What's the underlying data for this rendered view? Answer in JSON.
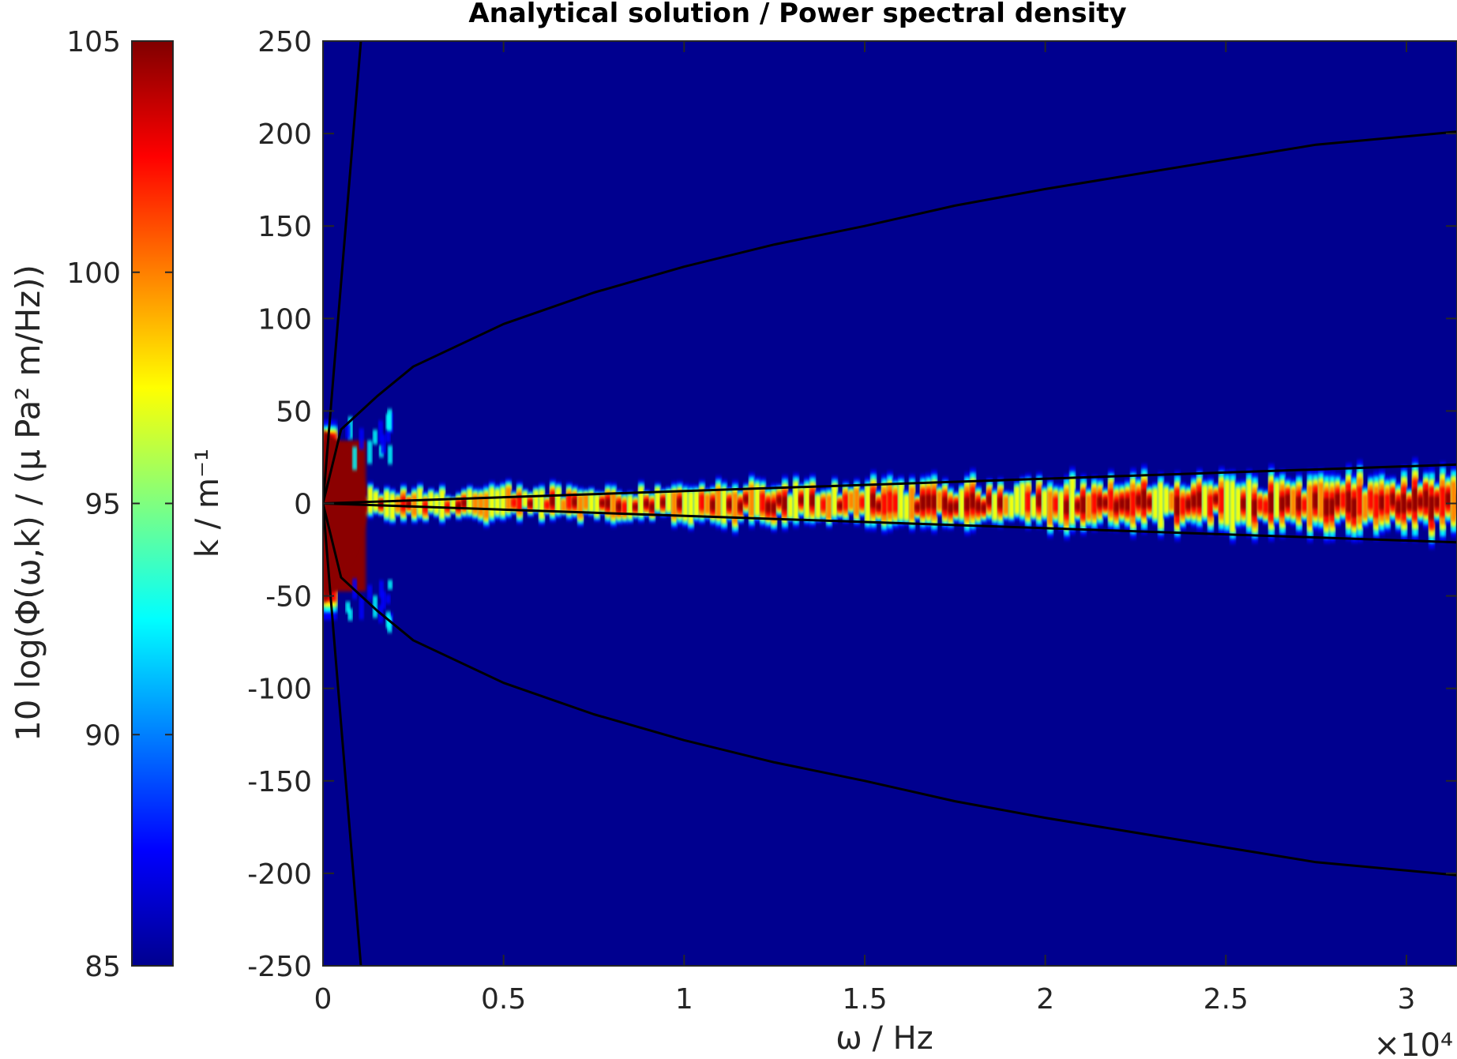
{
  "chart_data": {
    "type": "heatmap",
    "title": "Analytical solution / Power spectral density",
    "xlabel": "ω / Hz",
    "ylabel": "k / m⁻¹",
    "x_exponent_label": "×10⁴",
    "xlim": [
      0,
      31400
    ],
    "ylim": [
      -250,
      250
    ],
    "x_ticks": [
      0,
      5000,
      10000,
      15000,
      20000,
      25000,
      30000
    ],
    "x_tick_labels": [
      "0",
      "0.5",
      "1",
      "1.5",
      "2",
      "2.5",
      "3"
    ],
    "y_ticks": [
      250,
      200,
      150,
      100,
      50,
      0,
      -50,
      -100,
      -150,
      -200,
      -250
    ],
    "y_tick_labels": [
      "250",
      "200",
      "150",
      "100",
      "50",
      "0",
      "-50",
      "-100",
      "-150",
      "-200",
      "-250"
    ],
    "colorbar": {
      "label": "10 log(Φ(ω,k) / (μ Pa² m/Hz))",
      "range": [
        85,
        105
      ],
      "ticks": [
        105,
        100,
        95,
        90,
        85
      ],
      "tick_labels": [
        "105",
        "100",
        "95",
        "90",
        "85"
      ],
      "colormap": "jet"
    },
    "background_color": "#00008f",
    "curves": [
      {
        "points": [
          [
            0,
            0
          ],
          [
            1050,
            250
          ]
        ]
      },
      {
        "points": [
          [
            0,
            0
          ],
          [
            1050,
            -250
          ]
        ]
      },
      {
        "points": [
          [
            0,
            0
          ],
          [
            500,
            40
          ],
          [
            1500,
            58
          ],
          [
            2500,
            74
          ],
          [
            5000,
            97
          ],
          [
            7500,
            114
          ],
          [
            10000,
            128
          ],
          [
            12500,
            140
          ],
          [
            15000,
            150
          ],
          [
            17500,
            161
          ],
          [
            20000,
            170
          ],
          [
            22500,
            178
          ],
          [
            25000,
            186
          ],
          [
            27500,
            194
          ],
          [
            31400,
            201
          ]
        ]
      },
      {
        "points": [
          [
            0,
            0
          ],
          [
            500,
            -40
          ],
          [
            1500,
            -58
          ],
          [
            2500,
            -74
          ],
          [
            5000,
            -97
          ],
          [
            7500,
            -114
          ],
          [
            10000,
            -128
          ],
          [
            12500,
            -140
          ],
          [
            15000,
            -150
          ],
          [
            17500,
            -161
          ],
          [
            20000,
            -170
          ],
          [
            22500,
            -178
          ],
          [
            25000,
            -186
          ],
          [
            27500,
            -194
          ],
          [
            31400,
            -201
          ]
        ]
      },
      {
        "points": [
          [
            0,
            0
          ],
          [
            31400,
            21
          ]
        ]
      },
      {
        "points": [
          [
            0,
            0
          ],
          [
            31400,
            -21
          ]
        ]
      }
    ]
  }
}
